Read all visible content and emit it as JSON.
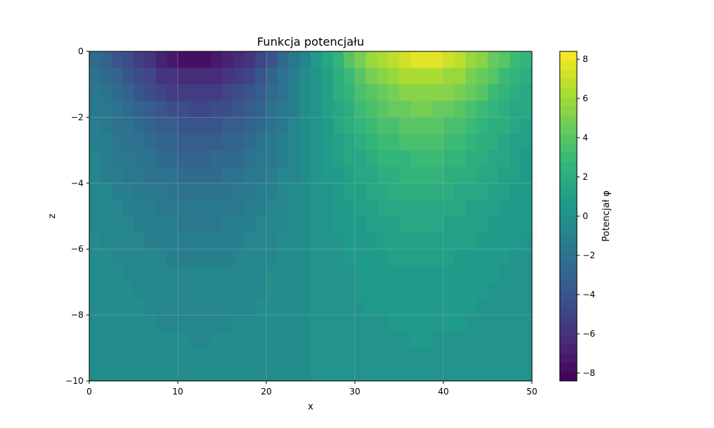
{
  "chart_data": {
    "type": "heatmap",
    "title": "Funkcja potencjału",
    "xlabel": "x",
    "ylabel": "z",
    "xlim": [
      0,
      50
    ],
    "ylim": [
      -10,
      0
    ],
    "x_ticks": [
      0,
      10,
      20,
      30,
      40,
      50
    ],
    "y_ticks": [
      0,
      -2,
      -4,
      -6,
      -8,
      -10
    ],
    "grid": true,
    "colorbar": {
      "label": "Potencjał φ",
      "colormap": "viridis",
      "range": [
        -8.4,
        8.4
      ],
      "ticks": [
        8,
        6,
        4,
        2,
        0,
        -2,
        -4,
        -6,
        -8
      ],
      "levels": 36
    },
    "field": {
      "description_free": true,
      "sources": [
        {
          "x": 12.5,
          "z": 0,
          "strength": -8.4
        },
        {
          "x": 37.5,
          "z": 0,
          "strength": 8.4
        }
      ],
      "x_step": 1.25,
      "z_step": 0.5
    },
    "colors": {
      "grid": "#b0b0b0",
      "axes": "#000000"
    }
  }
}
